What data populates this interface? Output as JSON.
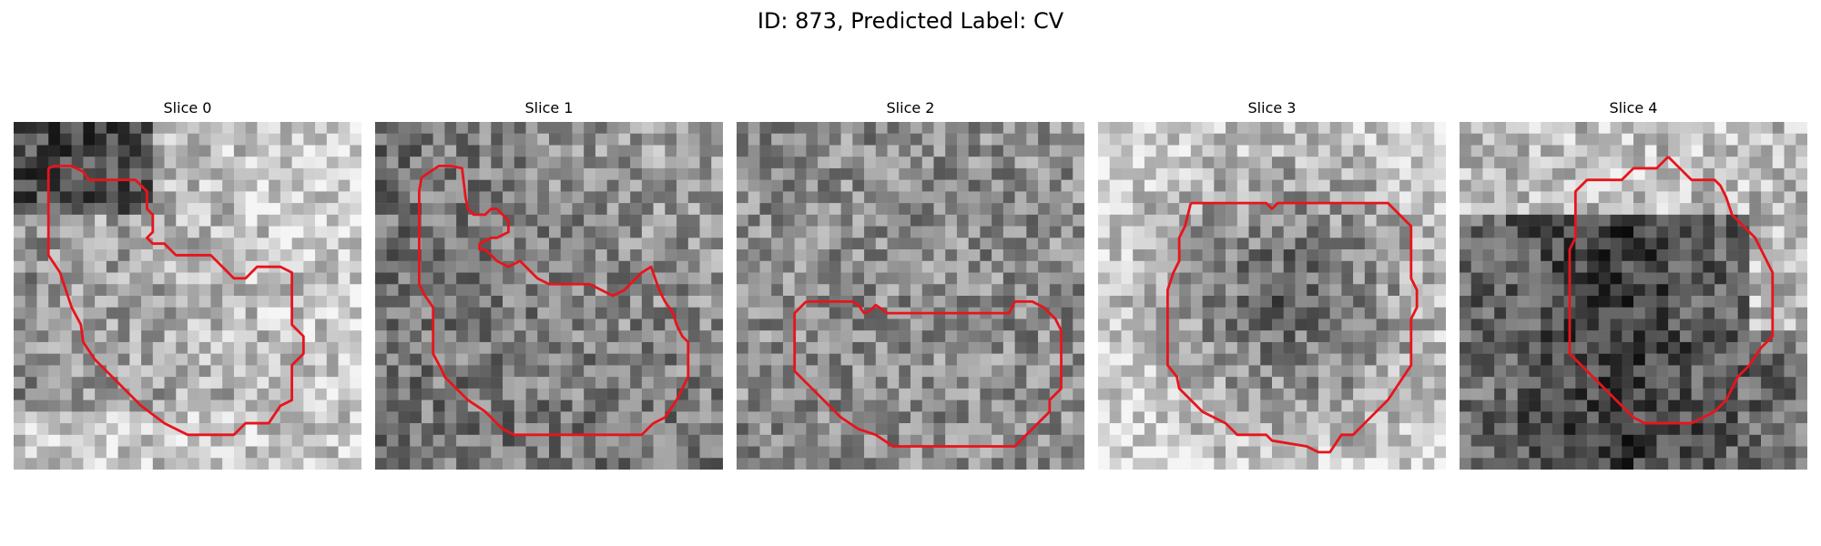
{
  "figure": {
    "title": "ID: 873, Predicted Label: CV"
  },
  "contour_color": "#e8141c",
  "slices": [
    {
      "title": "Slice 0",
      "seed": 11,
      "base": "light-left"
    },
    {
      "title": "Slice 1",
      "seed": 23,
      "base": "mixed"
    },
    {
      "title": "Slice 2",
      "seed": 37,
      "base": "uniform"
    },
    {
      "title": "Slice 3",
      "seed": 53,
      "base": "center-dark"
    },
    {
      "title": "Slice 4",
      "seed": 71,
      "base": "bottom-dark"
    }
  ]
}
